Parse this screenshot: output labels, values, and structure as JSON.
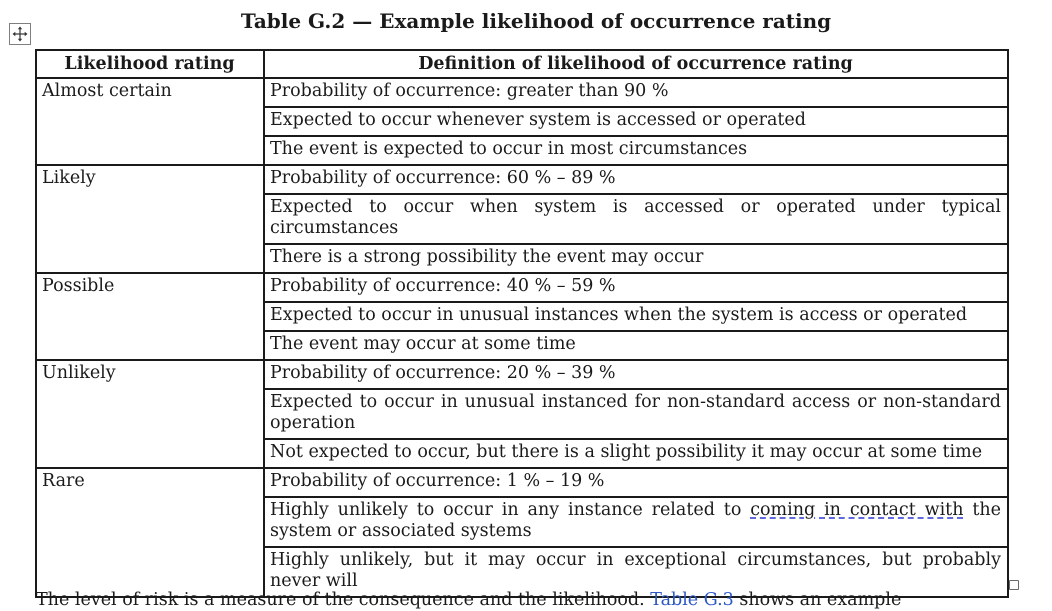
{
  "caption": "Table G.2 — Example likelihood of occurrence rating",
  "headers": {
    "rating": "Likelihood rating",
    "definition": "Definition of likelihood of occurrence rating"
  },
  "rows": [
    {
      "rating": "Almost certain",
      "definitions": [
        "Probability of occurrence: greater than 90 %",
        "Expected to occur whenever system is accessed or operated",
        "The event is expected to occur in most circumstances"
      ]
    },
    {
      "rating": "Likely",
      "definitions": [
        "Probability of occurrence: 60 % – 89 %",
        "Expected to occur when system is accessed or operated under typical circumstances",
        "There is a strong possibility the event may occur"
      ]
    },
    {
      "rating": "Possible",
      "definitions": [
        "Probability of occurrence: 40 % – 59 %",
        "Expected to occur in unusual instances when the system is access or operated",
        "The event may occur at some time"
      ]
    },
    {
      "rating": "Unlikely",
      "definitions": [
        "Probability of occurrence: 20 % – 39 %",
        "Expected to occur in unusual instanced for non-standard access or non-standard operation",
        "Not expected to occur, but there is a slight possibility it may occur at some time"
      ]
    },
    {
      "rating": "Rare",
      "definitions": [
        "Probability of occurrence: 1 % – 19 %",
        "Highly unlikely to occur in any instance related to coming in contact with the system or associated systems",
        "Highly unlikely, but it may occur in exceptional circumstances, but probably never will"
      ]
    }
  ],
  "squiggle_phrase": "coming in contact with",
  "following_text": {
    "before_link": "The level of risk is a measure of the consequence and the likelihood. ",
    "link": "Table G.3",
    "after_link": " shows an example"
  },
  "colors": {
    "border": "#1a1a1a",
    "link": "#2b57c8",
    "squiggle": "#4a55d8"
  }
}
